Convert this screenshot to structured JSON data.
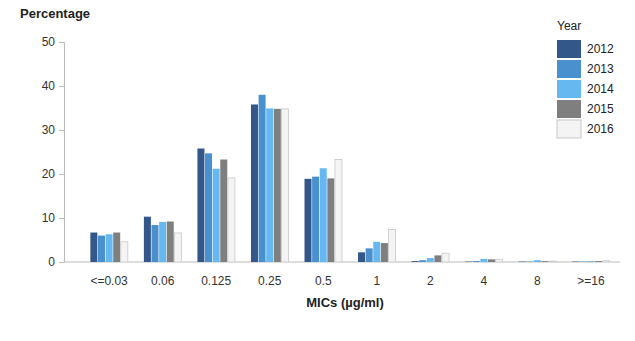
{
  "chart_data": {
    "type": "bar",
    "y_label": "Percentage",
    "x_label": "MICs (µg/ml)",
    "legend_title": "Year",
    "legend": "top-right",
    "categories": [
      "<=0.03",
      "0.06",
      "0.125",
      "0.25",
      "0.5",
      "1",
      "2",
      "4",
      "8",
      ">=16"
    ],
    "series": [
      {
        "name": "2012",
        "color": "#34578a",
        "values": [
          6.7,
          10.3,
          25.8,
          35.8,
          18.9,
          2.2,
          0.2,
          0.1,
          0.1,
          0.1
        ]
      },
      {
        "name": "2013",
        "color": "#4a8fce",
        "values": [
          6.0,
          8.4,
          24.7,
          38.0,
          19.4,
          3.1,
          0.4,
          0.2,
          0.1,
          0.1
        ]
      },
      {
        "name": "2014",
        "color": "#66b8f0",
        "values": [
          6.3,
          9.1,
          21.2,
          34.9,
          21.3,
          4.6,
          0.9,
          0.7,
          0.4,
          0.2
        ]
      },
      {
        "name": "2015",
        "color": "#7f7f7f",
        "values": [
          6.7,
          9.2,
          23.3,
          34.8,
          19.0,
          4.3,
          1.5,
          0.6,
          0.2,
          0.2
        ]
      },
      {
        "name": "2016",
        "color": "#f4f4f4",
        "values": [
          4.6,
          6.6,
          19.1,
          34.8,
          23.3,
          7.4,
          2.0,
          0.6,
          0.2,
          0.3
        ]
      }
    ],
    "ylim": [
      0,
      50
    ],
    "yticks": [
      0,
      10,
      20,
      30,
      40,
      50
    ],
    "grid": false
  }
}
